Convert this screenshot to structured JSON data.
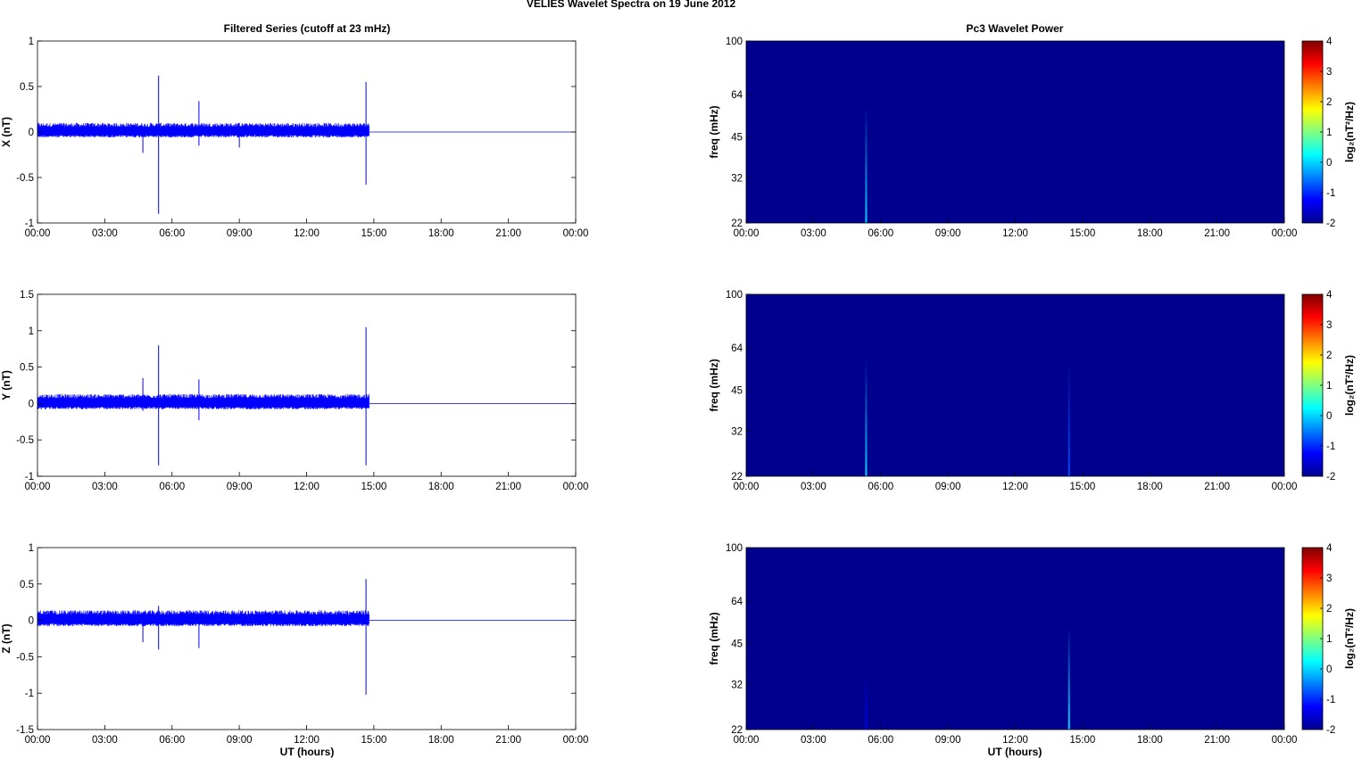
{
  "figure": {
    "suptitle": "VELIES Wavelet Spectra on 19 June      2012",
    "left_title": "Filtered Series (cutoff at 23 mHz)",
    "right_title": "Pc3 Wavelet Power",
    "xlabel": "UT (hours)",
    "freq_label": "freq (mHz)",
    "colorbar_label": "log₂(nT²/Hz)"
  },
  "colors": {
    "trace": "#0000ff",
    "spectrum_bg": "#00008f",
    "axes": "#000000"
  },
  "chart_data": [
    {
      "type": "line",
      "component": "X",
      "ylabel": "X (nT)",
      "x_ticks": [
        "00:00",
        "03:00",
        "06:00",
        "09:00",
        "12:00",
        "15:00",
        "18:00",
        "21:00",
        "00:00"
      ],
      "xlim": [
        0,
        24
      ],
      "ylim": [
        -1,
        1
      ],
      "y_ticks": [
        "1",
        "0.5",
        "0",
        "-0.5",
        "-1"
      ],
      "y_tick_values": [
        1,
        0.5,
        0,
        -0.5,
        -1
      ],
      "data_end_hour": 14.8,
      "noise_amplitude": [
        -0.06,
        0.1
      ],
      "spikes": [
        {
          "t": 4.7,
          "min": -0.23,
          "max": 0.05
        },
        {
          "t": 5.4,
          "min": -0.9,
          "max": 0.62
        },
        {
          "t": 7.2,
          "min": -0.15,
          "max": 0.34
        },
        {
          "t": 9.0,
          "min": -0.17,
          "max": 0.1
        },
        {
          "t": 14.65,
          "min": -0.58,
          "max": 0.55
        }
      ]
    },
    {
      "type": "heatmap",
      "component": "X",
      "ylabel": "freq (mHz)",
      "x_ticks": [
        "00:00",
        "03:00",
        "06:00",
        "09:00",
        "12:00",
        "15:00",
        "18:00",
        "21:00",
        "00:00"
      ],
      "xlim": [
        0,
        24
      ],
      "y_ticks": [
        "100",
        "64",
        "45",
        "32",
        "22"
      ],
      "y_tick_values": [
        100,
        64,
        45,
        32,
        22
      ],
      "y_scale": "log",
      "colorbar_ticks": [
        "4",
        "3",
        "2",
        "1",
        "0",
        "-1",
        "-2"
      ],
      "clim": [
        -2,
        4
      ],
      "background_level": -1.6,
      "features": [
        {
          "t": 5.35,
          "f_top": 58,
          "level": 0.0
        }
      ]
    },
    {
      "type": "line",
      "component": "Y",
      "ylabel": "Y (nT)",
      "x_ticks": [
        "00:00",
        "03:00",
        "06:00",
        "09:00",
        "12:00",
        "15:00",
        "18:00",
        "21:00",
        "00:00"
      ],
      "xlim": [
        0,
        24
      ],
      "ylim": [
        -1,
        1.5
      ],
      "y_ticks": [
        "1.5",
        "1",
        "0.5",
        "0",
        "-0.5",
        "-1"
      ],
      "y_tick_values": [
        1.5,
        1,
        0.5,
        0,
        -0.5,
        -1
      ],
      "data_end_hour": 14.8,
      "noise_amplitude": [
        -0.08,
        0.13
      ],
      "spikes": [
        {
          "t": 4.7,
          "min": -0.1,
          "max": 0.35
        },
        {
          "t": 5.4,
          "min": -0.85,
          "max": 0.8
        },
        {
          "t": 7.2,
          "min": -0.23,
          "max": 0.33
        },
        {
          "t": 14.65,
          "min": -0.85,
          "max": 1.05
        }
      ]
    },
    {
      "type": "heatmap",
      "component": "Y",
      "ylabel": "freq (mHz)",
      "x_ticks": [
        "00:00",
        "03:00",
        "06:00",
        "09:00",
        "12:00",
        "15:00",
        "18:00",
        "21:00",
        "00:00"
      ],
      "xlim": [
        0,
        24
      ],
      "y_ticks": [
        "100",
        "64",
        "45",
        "32",
        "22"
      ],
      "y_tick_values": [
        100,
        64,
        45,
        32,
        22
      ],
      "y_scale": "log",
      "colorbar_ticks": [
        "4",
        "3",
        "2",
        "1",
        "0",
        "-1",
        "-2"
      ],
      "clim": [
        -2,
        4
      ],
      "background_level": -1.6,
      "features": [
        {
          "t": 5.35,
          "f_top": 58,
          "level": 0.0
        },
        {
          "t": 14.4,
          "f_top": 58,
          "level": -0.8
        }
      ]
    },
    {
      "type": "line",
      "component": "Z",
      "ylabel": "Z (nT)",
      "x_ticks": [
        "00:00",
        "03:00",
        "06:00",
        "09:00",
        "12:00",
        "15:00",
        "18:00",
        "21:00",
        "00:00"
      ],
      "xlim": [
        0,
        24
      ],
      "ylim": [
        -1.5,
        1
      ],
      "y_ticks": [
        "1",
        "0.5",
        "0",
        "-0.5",
        "-1",
        "-1.5"
      ],
      "y_tick_values": [
        1,
        0.5,
        0,
        -0.5,
        -1,
        -1.5
      ],
      "data_end_hour": 14.8,
      "noise_amplitude": [
        -0.08,
        0.14
      ],
      "spikes": [
        {
          "t": 4.7,
          "min": -0.3,
          "max": 0.1
        },
        {
          "t": 5.4,
          "min": -0.4,
          "max": 0.2
        },
        {
          "t": 7.2,
          "min": -0.38,
          "max": 0.1
        },
        {
          "t": 14.65,
          "min": -1.02,
          "max": 0.57
        }
      ]
    },
    {
      "type": "heatmap",
      "component": "Z",
      "ylabel": "freq (mHz)",
      "x_ticks": [
        "00:00",
        "03:00",
        "06:00",
        "09:00",
        "12:00",
        "15:00",
        "18:00",
        "21:00",
        "00:00"
      ],
      "xlim": [
        0,
        24
      ],
      "y_ticks": [
        "100",
        "64",
        "45",
        "32",
        "22"
      ],
      "y_tick_values": [
        100,
        64,
        45,
        32,
        22
      ],
      "y_scale": "log",
      "colorbar_ticks": [
        "4",
        "3",
        "2",
        "1",
        "0",
        "-1",
        "-2"
      ],
      "clim": [
        -2,
        4
      ],
      "background_level": -1.6,
      "features": [
        {
          "t": 5.35,
          "f_top": 35,
          "level": -1.3
        },
        {
          "t": 14.4,
          "f_top": 52,
          "level": 0.0
        }
      ]
    }
  ]
}
